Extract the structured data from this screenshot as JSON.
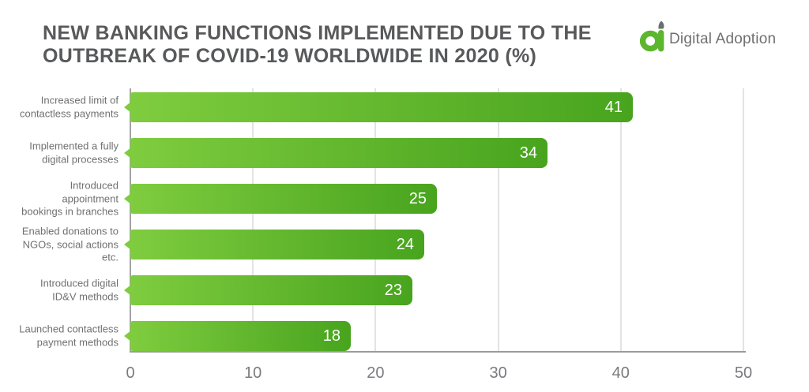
{
  "header": {
    "logo_text": "Digital Adoption",
    "logo_green": "#5cb62e",
    "logo_gray": "#6d6e71"
  },
  "chart_data": {
    "type": "bar",
    "orientation": "horizontal",
    "title": "NEW BANKING FUNCTIONS IMPLEMENTED DUE TO THE OUTBREAK OF COVID-19 WORLDWIDE IN 2020 (%)",
    "title_lines": [
      "NEW BANKING FUNCTIONS IMPLEMENTED DUE TO THE",
      "OUTBREAK OF COVID-19 WORLDWIDE IN 2020 (%)"
    ],
    "categories": [
      "Increased limit of\ncontactless payments",
      "Implemented a fully\ndigital processes",
      "Introduced\nappointment\nbookings in branches",
      "Enabled donations to\nNGOs, social actions\netc.",
      "Introduced digital\nID&V methods",
      "Launched contactless\npayment methods"
    ],
    "values": [
      41,
      34,
      25,
      24,
      23,
      18
    ],
    "value_labels": [
      "41",
      "34",
      "25",
      "24",
      "23",
      "18"
    ],
    "xlim": [
      0,
      50
    ],
    "x_ticks": [
      0,
      10,
      20,
      30,
      40,
      50
    ],
    "grid": "vertical-only",
    "legend": "none",
    "bar_gradient_start": "#7fcc3f",
    "bar_gradient_end": "#48a41e",
    "value_label_color": "#ffffff",
    "axis_color": "#9b9b9b",
    "gridline_color": "#e3e3e3",
    "title_color": "#58595b",
    "category_label_color": "#6f7072"
  }
}
